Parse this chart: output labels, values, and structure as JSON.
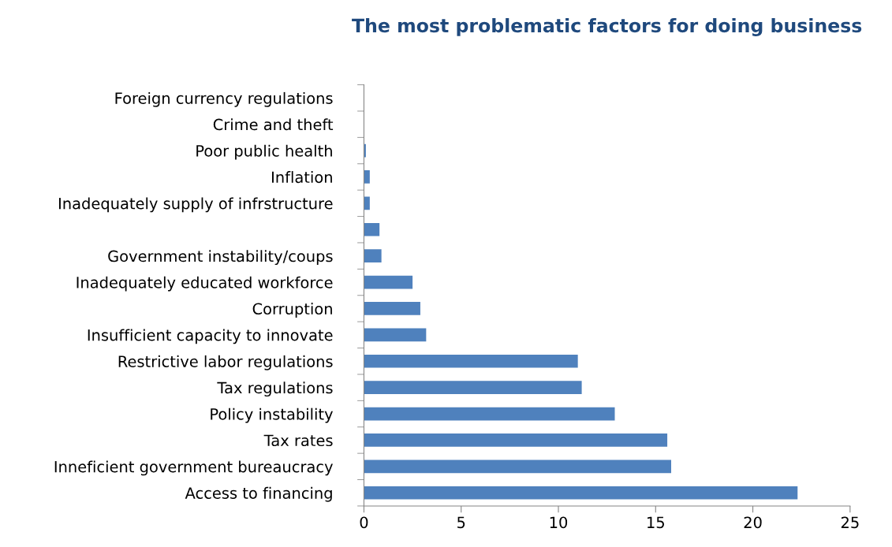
{
  "chart_data": {
    "type": "bar",
    "orientation": "horizontal",
    "title": "The most problematic factors for doing business",
    "categories": [
      "Foreign currency regulations",
      "Crime and theft",
      "Poor public health",
      "Inflation",
      "Inadequately supply of infrstructure",
      null,
      "Government instability/coups",
      "Inadequately educated workforce",
      "Corruption",
      "Insufficient capacity to innovate",
      "Restrictive labor regulations",
      "Tax regulations",
      "Policy instability",
      "Tax rates",
      "Inneficient government bureaucracy",
      "Access to financing"
    ],
    "values": [
      0,
      0,
      0.1,
      0.3,
      0.3,
      0.8,
      0.9,
      2.5,
      2.9,
      3.2,
      11.0,
      11.2,
      12.9,
      15.6,
      15.8,
      22.3
    ],
    "color": "#4f81bd",
    "xlim": [
      0,
      25
    ],
    "xticks": [
      0,
      5,
      10,
      15,
      20,
      25
    ],
    "grid": false,
    "legend": false
  }
}
